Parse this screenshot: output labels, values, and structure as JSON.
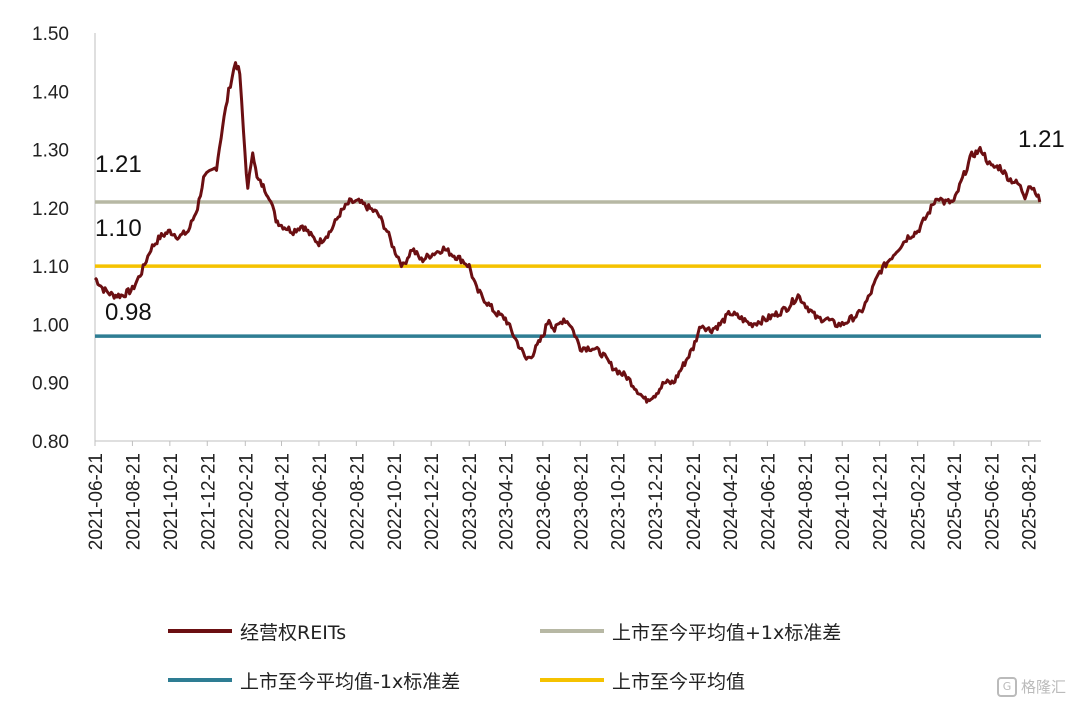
{
  "chart_data": {
    "type": "line",
    "title": "",
    "xlabel": "",
    "ylabel": "",
    "ylim": [
      0.8,
      1.5
    ],
    "y_ticks": [
      "0.80",
      "0.90",
      "1.00",
      "1.10",
      "1.20",
      "1.30",
      "1.40",
      "1.50"
    ],
    "x_ticks": [
      "2021-06-21",
      "2021-08-21",
      "2021-10-21",
      "2021-12-21",
      "2022-02-21",
      "2022-04-21",
      "2022-06-21",
      "2022-08-21",
      "2022-10-21",
      "2022-12-21",
      "2023-02-21",
      "2023-04-21",
      "2023-06-21",
      "2023-08-21",
      "2023-10-21",
      "2023-12-21",
      "2024-02-21",
      "2024-04-21",
      "2024-06-21",
      "2024-08-21",
      "2024-10-21",
      "2024-12-21",
      "2025-02-21",
      "2025-04-21",
      "2025-06-21",
      "2025-08-21"
    ],
    "x_end": "2025-09-10",
    "grid": false,
    "legend_position": "bottom",
    "series": [
      {
        "name": "经营权REITs",
        "color": "#6b0f12",
        "points": [
          [
            "2021-06-21",
            1.08
          ],
          [
            "2021-07-05",
            1.06
          ],
          [
            "2021-07-20",
            1.05
          ],
          [
            "2021-08-05",
            1.05
          ],
          [
            "2021-08-21",
            1.06
          ],
          [
            "2021-09-05",
            1.09
          ],
          [
            "2021-09-20",
            1.13
          ],
          [
            "2021-10-05",
            1.15
          ],
          [
            "2021-10-21",
            1.16
          ],
          [
            "2021-11-05",
            1.15
          ],
          [
            "2021-11-20",
            1.16
          ],
          [
            "2021-12-05",
            1.2
          ],
          [
            "2021-12-15",
            1.25
          ],
          [
            "2021-12-25",
            1.26
          ],
          [
            "2022-01-05",
            1.27
          ],
          [
            "2022-01-15",
            1.34
          ],
          [
            "2022-01-25",
            1.4
          ],
          [
            "2022-02-05",
            1.45
          ],
          [
            "2022-02-12",
            1.43
          ],
          [
            "2022-02-18",
            1.33
          ],
          [
            "2022-02-25",
            1.23
          ],
          [
            "2022-03-05",
            1.3
          ],
          [
            "2022-03-12",
            1.25
          ],
          [
            "2022-03-20",
            1.24
          ],
          [
            "2022-04-01",
            1.22
          ],
          [
            "2022-04-12",
            1.18
          ],
          [
            "2022-04-21",
            1.17
          ],
          [
            "2022-05-10",
            1.16
          ],
          [
            "2022-05-25",
            1.17
          ],
          [
            "2022-06-10",
            1.15
          ],
          [
            "2022-06-21",
            1.14
          ],
          [
            "2022-07-10",
            1.16
          ],
          [
            "2022-07-25",
            1.19
          ],
          [
            "2022-08-10",
            1.21
          ],
          [
            "2022-08-25",
            1.21
          ],
          [
            "2022-09-10",
            1.2
          ],
          [
            "2022-09-25",
            1.19
          ],
          [
            "2022-10-10",
            1.16
          ],
          [
            "2022-10-21",
            1.13
          ],
          [
            "2022-11-05",
            1.1
          ],
          [
            "2022-11-20",
            1.13
          ],
          [
            "2022-12-05",
            1.11
          ],
          [
            "2022-12-21",
            1.12
          ],
          [
            "2023-01-10",
            1.13
          ],
          [
            "2023-01-25",
            1.12
          ],
          [
            "2023-02-10",
            1.11
          ],
          [
            "2023-02-21",
            1.1
          ],
          [
            "2023-03-05",
            1.06
          ],
          [
            "2023-03-20",
            1.04
          ],
          [
            "2023-04-05",
            1.02
          ],
          [
            "2023-04-21",
            1.01
          ],
          [
            "2023-05-05",
            0.98
          ],
          [
            "2023-05-15",
            0.96
          ],
          [
            "2023-05-25",
            0.94
          ],
          [
            "2023-06-05",
            0.95
          ],
          [
            "2023-06-21",
            0.98
          ],
          [
            "2023-07-01",
            1.01
          ],
          [
            "2023-07-10",
            0.99
          ],
          [
            "2023-07-25",
            1.01
          ],
          [
            "2023-08-05",
            1.0
          ],
          [
            "2023-08-21",
            0.96
          ],
          [
            "2023-09-10",
            0.96
          ],
          [
            "2023-09-25",
            0.95
          ],
          [
            "2023-10-10",
            0.93
          ],
          [
            "2023-10-21",
            0.92
          ],
          [
            "2023-11-05",
            0.91
          ],
          [
            "2023-11-20",
            0.89
          ],
          [
            "2023-12-05",
            0.87
          ],
          [
            "2023-12-21",
            0.88
          ],
          [
            "2024-01-05",
            0.9
          ],
          [
            "2024-01-20",
            0.9
          ],
          [
            "2024-02-05",
            0.93
          ],
          [
            "2024-02-21",
            0.96
          ],
          [
            "2024-03-05",
            1.0
          ],
          [
            "2024-03-20",
            0.99
          ],
          [
            "2024-04-05",
            1.0
          ],
          [
            "2024-04-21",
            1.02
          ],
          [
            "2024-05-10",
            1.01
          ],
          [
            "2024-05-25",
            1.0
          ],
          [
            "2024-06-21",
            1.01
          ],
          [
            "2024-07-10",
            1.02
          ],
          [
            "2024-07-25",
            1.03
          ],
          [
            "2024-08-10",
            1.05
          ],
          [
            "2024-08-25",
            1.03
          ],
          [
            "2024-09-10",
            1.01
          ],
          [
            "2024-09-25",
            1.01
          ],
          [
            "2024-10-10",
            1.0
          ],
          [
            "2024-10-21",
            1.0
          ],
          [
            "2024-11-05",
            1.01
          ],
          [
            "2024-11-20",
            1.02
          ],
          [
            "2024-12-05",
            1.05
          ],
          [
            "2024-12-21",
            1.09
          ],
          [
            "2025-01-05",
            1.11
          ],
          [
            "2025-01-20",
            1.13
          ],
          [
            "2025-02-05",
            1.15
          ],
          [
            "2025-02-21",
            1.16
          ],
          [
            "2025-03-10",
            1.19
          ],
          [
            "2025-03-25",
            1.22
          ],
          [
            "2025-04-05",
            1.21
          ],
          [
            "2025-04-21",
            1.21
          ],
          [
            "2025-05-05",
            1.25
          ],
          [
            "2025-05-20",
            1.29
          ],
          [
            "2025-06-05",
            1.3
          ],
          [
            "2025-06-15",
            1.28
          ],
          [
            "2025-06-21",
            1.27
          ],
          [
            "2025-07-05",
            1.27
          ],
          [
            "2025-07-20",
            1.25
          ],
          [
            "2025-08-05",
            1.24
          ],
          [
            "2025-08-15",
            1.22
          ],
          [
            "2025-08-21",
            1.24
          ],
          [
            "2025-09-01",
            1.23
          ],
          [
            "2025-09-08",
            1.21
          ]
        ]
      },
      {
        "name": "上市至今平均值+1x标准差",
        "color": "#b7b8a4",
        "value": 1.21
      },
      {
        "name": "上市至今平均值-1x标准差",
        "color": "#2e7d93",
        "value": 0.98
      },
      {
        "name": "上市至今平均值",
        "color": "#f5c200",
        "value": 1.1
      }
    ],
    "annotations": [
      {
        "text": "1.21",
        "x": "2021-06-21",
        "y": 1.21,
        "position": "upper-left"
      },
      {
        "text": "1.10",
        "x": "2021-06-21",
        "y": 1.1,
        "position": "upper-left"
      },
      {
        "text": "0.98",
        "x": "2021-06-21",
        "y": 0.98,
        "position": "upper-left"
      },
      {
        "text": "1.21",
        "x": "2025-09-08",
        "y": 1.21,
        "position": "upper-right"
      }
    ]
  },
  "legend": [
    {
      "label": "经营权REITs",
      "color": "#6b0f12"
    },
    {
      "label": "上市至今平均值+1x标准差",
      "color": "#b7b8a4"
    },
    {
      "label": "上市至今平均值-1x标准差",
      "color": "#2e7d93"
    },
    {
      "label": "上市至今平均值",
      "color": "#f5c200"
    }
  ],
  "watermark": {
    "icon": "gelonghui-logo-icon",
    "text": "格隆汇"
  }
}
